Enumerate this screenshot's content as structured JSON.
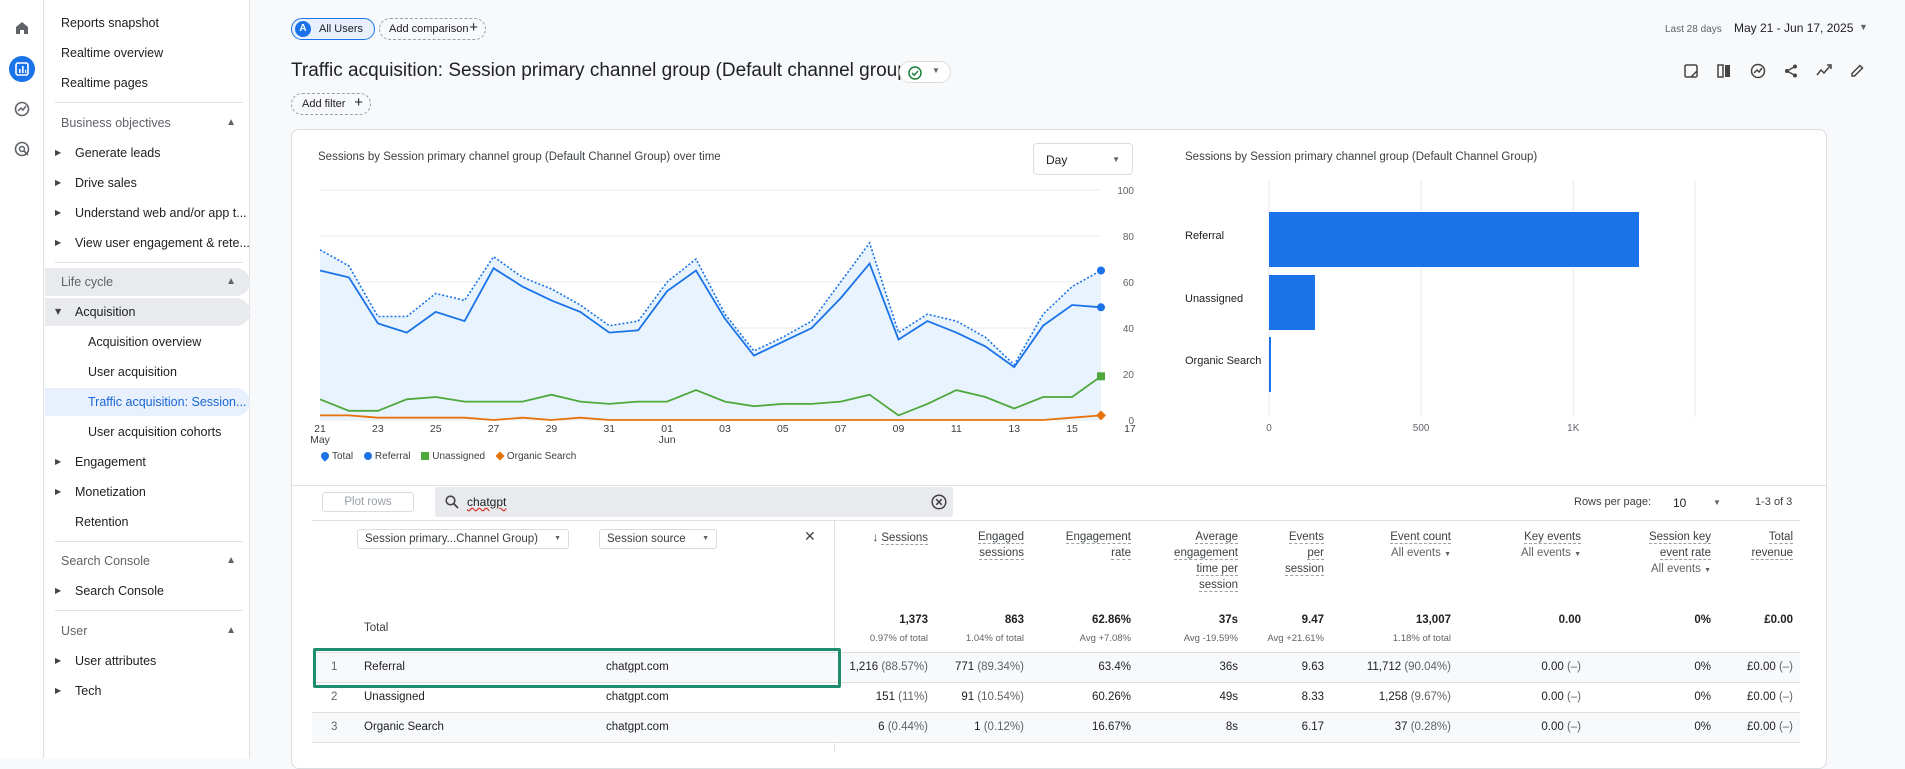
{
  "nav": {
    "items": [
      "Reports snapshot",
      "Realtime overview",
      "Realtime pages"
    ],
    "business_header": "Business objectives",
    "business": [
      "Generate leads",
      "Drive sales",
      "Understand web and/or app t...",
      "View user engagement & rete..."
    ],
    "lifecycle_header": "Life cycle",
    "acquisition": "Acquisition",
    "acq_items": [
      "Acquisition overview",
      "User acquisition",
      "Traffic acquisition: Session...",
      "User acquisition cohorts"
    ],
    "lifecycle_rest": [
      "Engagement",
      "Monetization",
      "Retention"
    ],
    "search_header": "Search Console",
    "search_item": "Search Console",
    "user_header": "User",
    "user_items": [
      "User attributes",
      "Tech"
    ]
  },
  "top": {
    "all_users": "All Users",
    "all_users_letter": "A",
    "add_comparison": "Add comparison",
    "date_label": "Last 28 days",
    "date_range": "May 21 - Jun 17, 2025",
    "title": "Traffic acquisition: Session primary channel group (Default channel group)",
    "add_filter": "Add filter"
  },
  "line_chart": {
    "title": "Sessions by Session primary channel group (Default Channel Group) over time",
    "granularity": "Day",
    "y_ticks": [
      "100",
      "80",
      "60",
      "40",
      "20",
      "0"
    ],
    "x_ticks": [
      "21",
      "23",
      "25",
      "27",
      "29",
      "31",
      "01",
      "03",
      "05",
      "07",
      "09",
      "11",
      "13",
      "15",
      "17"
    ],
    "x_month_1": "May",
    "x_month_2": "Jun",
    "legend": [
      "Total",
      "Referral",
      "Unassigned",
      "Organic Search"
    ]
  },
  "bar_chart": {
    "title": "Sessions by Session primary channel group (Default Channel Group)",
    "x_ticks": [
      "0",
      "500",
      "1K"
    ]
  },
  "chart_data": [
    {
      "type": "line",
      "title": "Sessions by Session primary channel group (Default Channel Group) over time",
      "x": [
        "May 21",
        "May 22",
        "May 23",
        "May 24",
        "May 25",
        "May 26",
        "May 27",
        "May 28",
        "May 29",
        "May 30",
        "May 31",
        "Jun 01",
        "Jun 02",
        "Jun 03",
        "Jun 04",
        "Jun 05",
        "Jun 06",
        "Jun 07",
        "Jun 08",
        "Jun 09",
        "Jun 10",
        "Jun 11",
        "Jun 12",
        "Jun 13",
        "Jun 14",
        "Jun 15",
        "Jun 16",
        "Jun 17"
      ],
      "ylim": [
        0,
        100
      ],
      "series": [
        {
          "name": "Total",
          "color": "#1a73e8",
          "style": "dotted",
          "values": [
            74,
            67,
            45,
            45,
            55,
            52,
            71,
            62,
            57,
            50,
            41,
            43,
            60,
            70,
            46,
            30,
            36,
            43,
            60,
            77,
            38,
            46,
            43,
            36,
            24,
            46,
            58,
            65
          ]
        },
        {
          "name": "Referral",
          "color": "#1a73e8",
          "values": [
            65,
            62,
            42,
            38,
            47,
            43,
            66,
            58,
            52,
            47,
            38,
            39,
            56,
            65,
            44,
            28,
            34,
            40,
            53,
            68,
            35,
            43,
            38,
            32,
            23,
            41,
            50,
            49
          ]
        },
        {
          "name": "Unassigned",
          "color": "#4ea83c",
          "values": [
            9,
            4,
            4,
            9,
            10,
            8,
            8,
            8,
            11,
            8,
            7,
            8,
            8,
            13,
            8,
            6,
            7,
            7,
            8,
            11,
            2,
            7,
            13,
            10,
            5,
            10,
            10,
            19
          ]
        },
        {
          "name": "Organic Search",
          "color": "#e8710a",
          "values": [
            2,
            2,
            1,
            1,
            1,
            1,
            0,
            1,
            0,
            1,
            0,
            0,
            0,
            0,
            0,
            0,
            0,
            0,
            0,
            0,
            0,
            0,
            0,
            0,
            0,
            0,
            1,
            2
          ]
        }
      ]
    },
    {
      "type": "bar",
      "orientation": "horizontal",
      "title": "Sessions by Session primary channel group (Default Channel Group)",
      "categories": [
        "Referral",
        "Unassigned",
        "Organic Search"
      ],
      "values": [
        1216,
        151,
        6
      ],
      "xlim": [
        0,
        1400
      ],
      "color": "#1a73e8"
    }
  ],
  "table_bar": {
    "plot_rows": "Plot rows",
    "search_value": "chatgpt",
    "rows_per_page_label": "Rows per page:",
    "rows_per_page": "10",
    "range": "1-3 of 3"
  },
  "table": {
    "dim1": "Session primary...Channel Group)",
    "dim2": "Session source",
    "headers": [
      {
        "l1": "Sessions"
      },
      {
        "l1": "Engaged",
        "l2": "sessions"
      },
      {
        "l1": "Engagement",
        "l2": "rate"
      },
      {
        "l1": "Average",
        "l2": "engagement",
        "l3": "time per",
        "l4": "session"
      },
      {
        "l1": "Events",
        "l2": "per",
        "l3": "session"
      },
      {
        "l1": "Event count",
        "sub": "All events"
      },
      {
        "l1": "Key events",
        "sub": "All events"
      },
      {
        "l1": "Session key",
        "l2": "event rate",
        "sub": "All events"
      },
      {
        "l1": "Total",
        "l2": "revenue"
      }
    ],
    "total_label": "Total",
    "totals": [
      "1,373",
      "863",
      "62.86%",
      "37s",
      "9.47",
      "13,007",
      "0.00",
      "0%",
      "£0.00"
    ],
    "totals_sub": [
      "0.97% of total",
      "1.04% of total",
      "Avg +7.08%",
      "Avg -19.59%",
      "Avg +21.61%",
      "1.18% of total",
      "",
      "",
      ""
    ],
    "rows": [
      {
        "idx": "1",
        "channel": "Referral",
        "source": "chatgpt.com",
        "sessions": "1,216",
        "sessions_pct": "(88.57%)",
        "engaged": "771",
        "engaged_pct": "(89.34%)",
        "rate": "63.4%",
        "avg": "36s",
        "eps": "9.63",
        "events": "11,712",
        "events_pct": "(90.04%)",
        "key": "0.00",
        "key_pct": "(–)",
        "kr": "0%",
        "rev": "£0.00",
        "rev_pct": "(–)"
      },
      {
        "idx": "2",
        "channel": "Unassigned",
        "source": "chatgpt.com",
        "sessions": "151",
        "sessions_pct": "(11%)",
        "engaged": "91",
        "engaged_pct": "(10.54%)",
        "rate": "60.26%",
        "avg": "49s",
        "eps": "8.33",
        "events": "1,258",
        "events_pct": "(9.67%)",
        "key": "0.00",
        "key_pct": "(–)",
        "kr": "0%",
        "rev": "£0.00",
        "rev_pct": "(–)"
      },
      {
        "idx": "3",
        "channel": "Organic Search",
        "source": "chatgpt.com",
        "sessions": "6",
        "sessions_pct": "(0.44%)",
        "engaged": "1",
        "engaged_pct": "(0.12%)",
        "rate": "16.67%",
        "avg": "8s",
        "eps": "6.17",
        "events": "37",
        "events_pct": "(0.28%)",
        "key": "0.00",
        "key_pct": "(–)",
        "kr": "0%",
        "rev": "£0.00",
        "rev_pct": "(–)"
      }
    ]
  },
  "colors": {
    "accent": "#1a73e8",
    "highlight_border": "#1e8c6e",
    "unassigned": "#4ea83c",
    "organic": "#e8710a"
  }
}
